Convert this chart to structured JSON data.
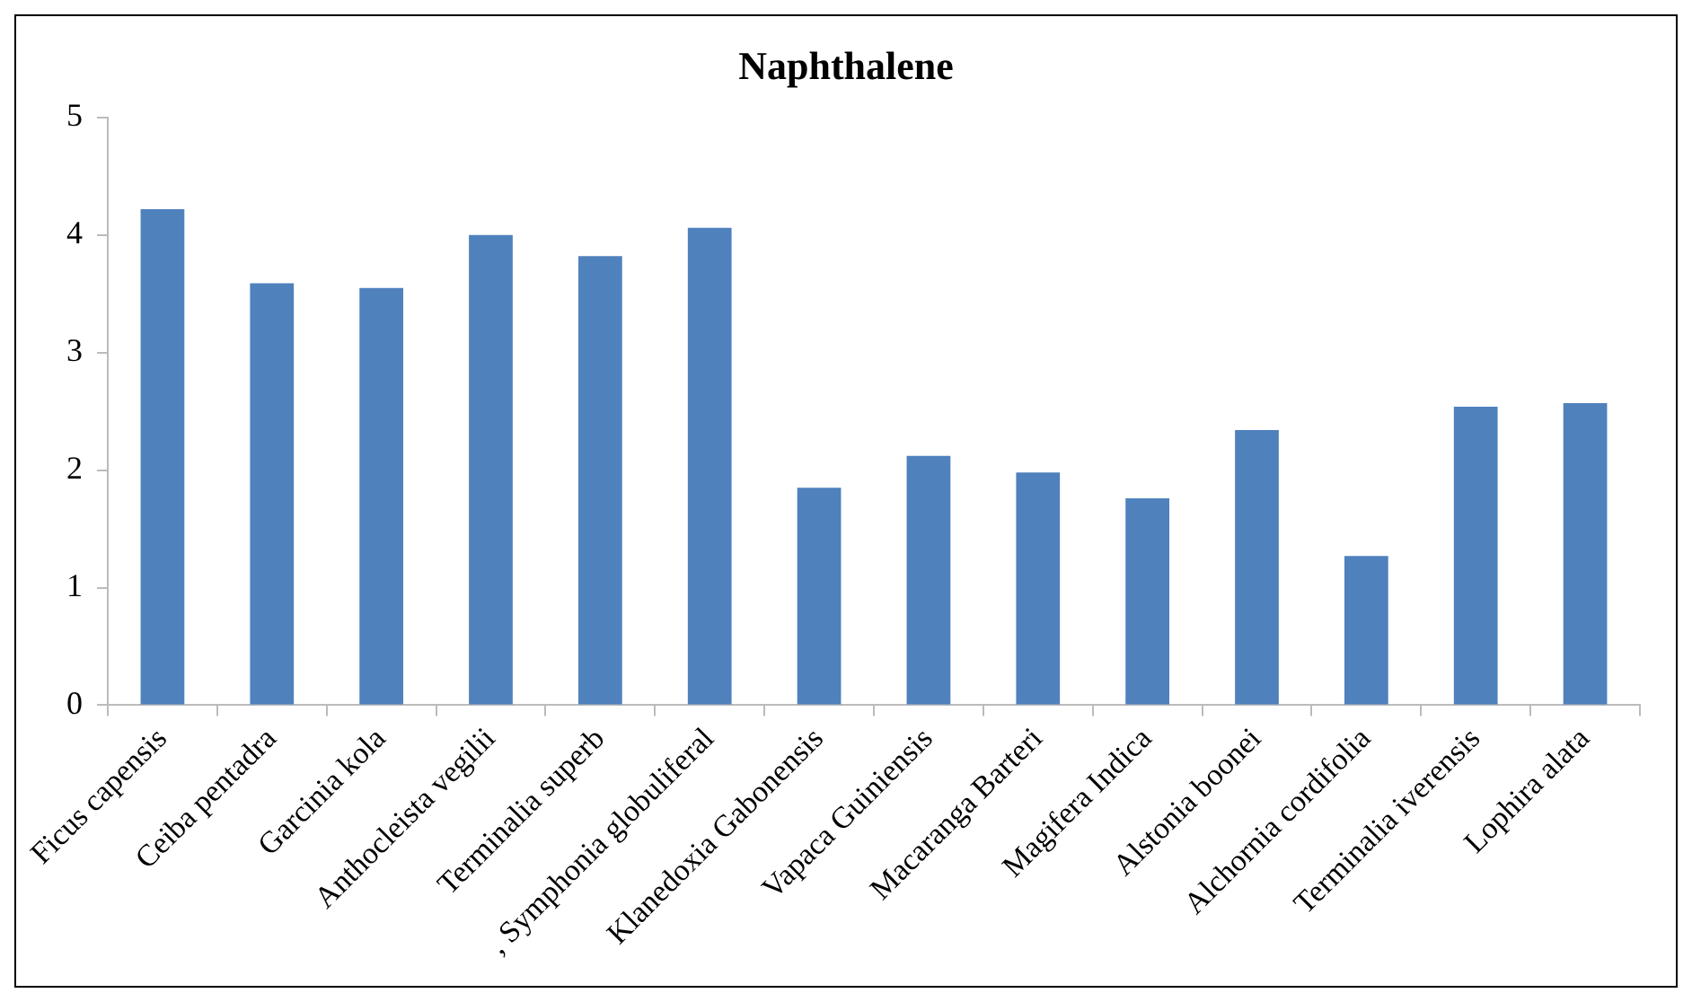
{
  "chart_data": {
    "type": "bar",
    "title": "Naphthalene",
    "categories": [
      "Ficus capensis",
      "Ceiba pentadra",
      "Garcinia kola",
      "Anthocleista vegilii",
      "Terminalia superb",
      ", Symphonia globuliferal",
      "Klanedoxia Gabonensis",
      "Vapaca Guiniensis",
      "Macaranga Barteri",
      "Magifera Indica",
      "Alstonia boonei",
      "Alchornia cordifolia",
      "Terminalia iverensis",
      "Lophira alata"
    ],
    "values": [
      4.22,
      3.59,
      3.55,
      4.0,
      3.82,
      4.06,
      1.85,
      2.12,
      1.98,
      1.76,
      2.34,
      1.27,
      2.54,
      2.57
    ],
    "color": "#4f81bd",
    "ylim": [
      0,
      5
    ],
    "yticks": [
      0,
      1,
      2,
      3,
      4,
      5
    ],
    "grid": false,
    "legend": false
  }
}
